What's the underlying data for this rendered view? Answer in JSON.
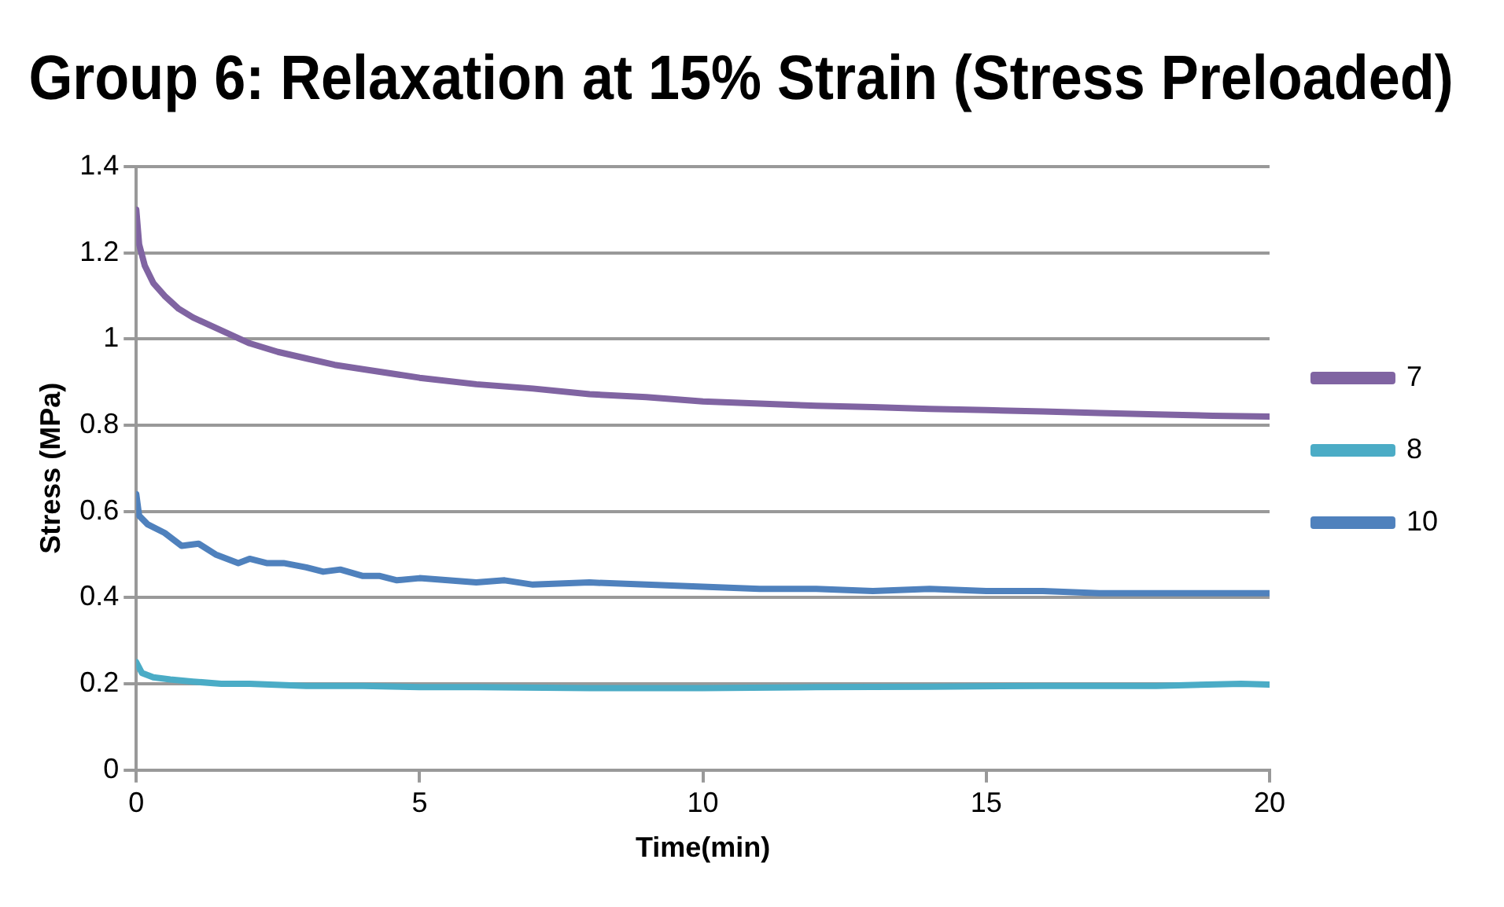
{
  "chart_data": {
    "type": "line",
    "title": "Group 6: Relaxation at 15% Strain (Stress Preloaded)",
    "xlabel": "Time(min)",
    "ylabel": "Stress (MPa)",
    "xlim": [
      0,
      20
    ],
    "xticks": [
      0,
      5,
      10,
      15,
      20
    ],
    "ylim": [
      0,
      1.4
    ],
    "yticks": [
      0,
      0.2,
      0.4,
      0.6,
      0.8,
      1,
      1.2,
      1.4
    ],
    "grid": "y",
    "legend": "right",
    "marker": "none",
    "line_style": "solid",
    "series": [
      {
        "name": "7",
        "color": "#8064a2",
        "x": [
          0,
          0.05,
          0.15,
          0.3,
          0.5,
          0.75,
          1,
          1.5,
          2,
          2.5,
          3,
          3.5,
          4,
          5,
          6,
          7,
          8,
          9,
          10,
          11,
          12,
          13,
          14,
          15,
          16,
          17,
          18,
          19,
          20
        ],
        "values": [
          1.3,
          1.22,
          1.17,
          1.13,
          1.1,
          1.07,
          1.05,
          1.02,
          0.99,
          0.97,
          0.955,
          0.94,
          0.93,
          0.91,
          0.895,
          0.885,
          0.872,
          0.865,
          0.855,
          0.85,
          0.845,
          0.842,
          0.838,
          0.835,
          0.832,
          0.828,
          0.825,
          0.822,
          0.82
        ]
      },
      {
        "name": "8",
        "color": "#4bacc6",
        "x": [
          0,
          0.1,
          0.3,
          0.6,
          1,
          1.5,
          2,
          3,
          4,
          5,
          6,
          8,
          10,
          12,
          14,
          16,
          18,
          19.5,
          20
        ],
        "values": [
          0.25,
          0.225,
          0.215,
          0.21,
          0.205,
          0.2,
          0.2,
          0.195,
          0.195,
          0.192,
          0.192,
          0.19,
          0.19,
          0.192,
          0.193,
          0.195,
          0.195,
          0.2,
          0.198
        ]
      },
      {
        "name": "10",
        "color": "#4f81bd",
        "x": [
          0,
          0.05,
          0.2,
          0.5,
          0.8,
          1.1,
          1.4,
          1.8,
          2,
          2.3,
          2.6,
          3,
          3.3,
          3.6,
          4,
          4.3,
          4.6,
          5,
          5.5,
          6,
          6.5,
          7,
          8,
          9,
          10,
          11,
          12,
          13,
          14,
          15,
          16,
          17,
          18,
          19,
          20
        ],
        "values": [
          0.64,
          0.59,
          0.57,
          0.55,
          0.52,
          0.525,
          0.5,
          0.48,
          0.49,
          0.48,
          0.48,
          0.47,
          0.46,
          0.465,
          0.45,
          0.45,
          0.44,
          0.445,
          0.44,
          0.435,
          0.44,
          0.43,
          0.435,
          0.43,
          0.425,
          0.42,
          0.42,
          0.415,
          0.42,
          0.415,
          0.415,
          0.41,
          0.41,
          0.41,
          0.41
        ]
      }
    ]
  }
}
